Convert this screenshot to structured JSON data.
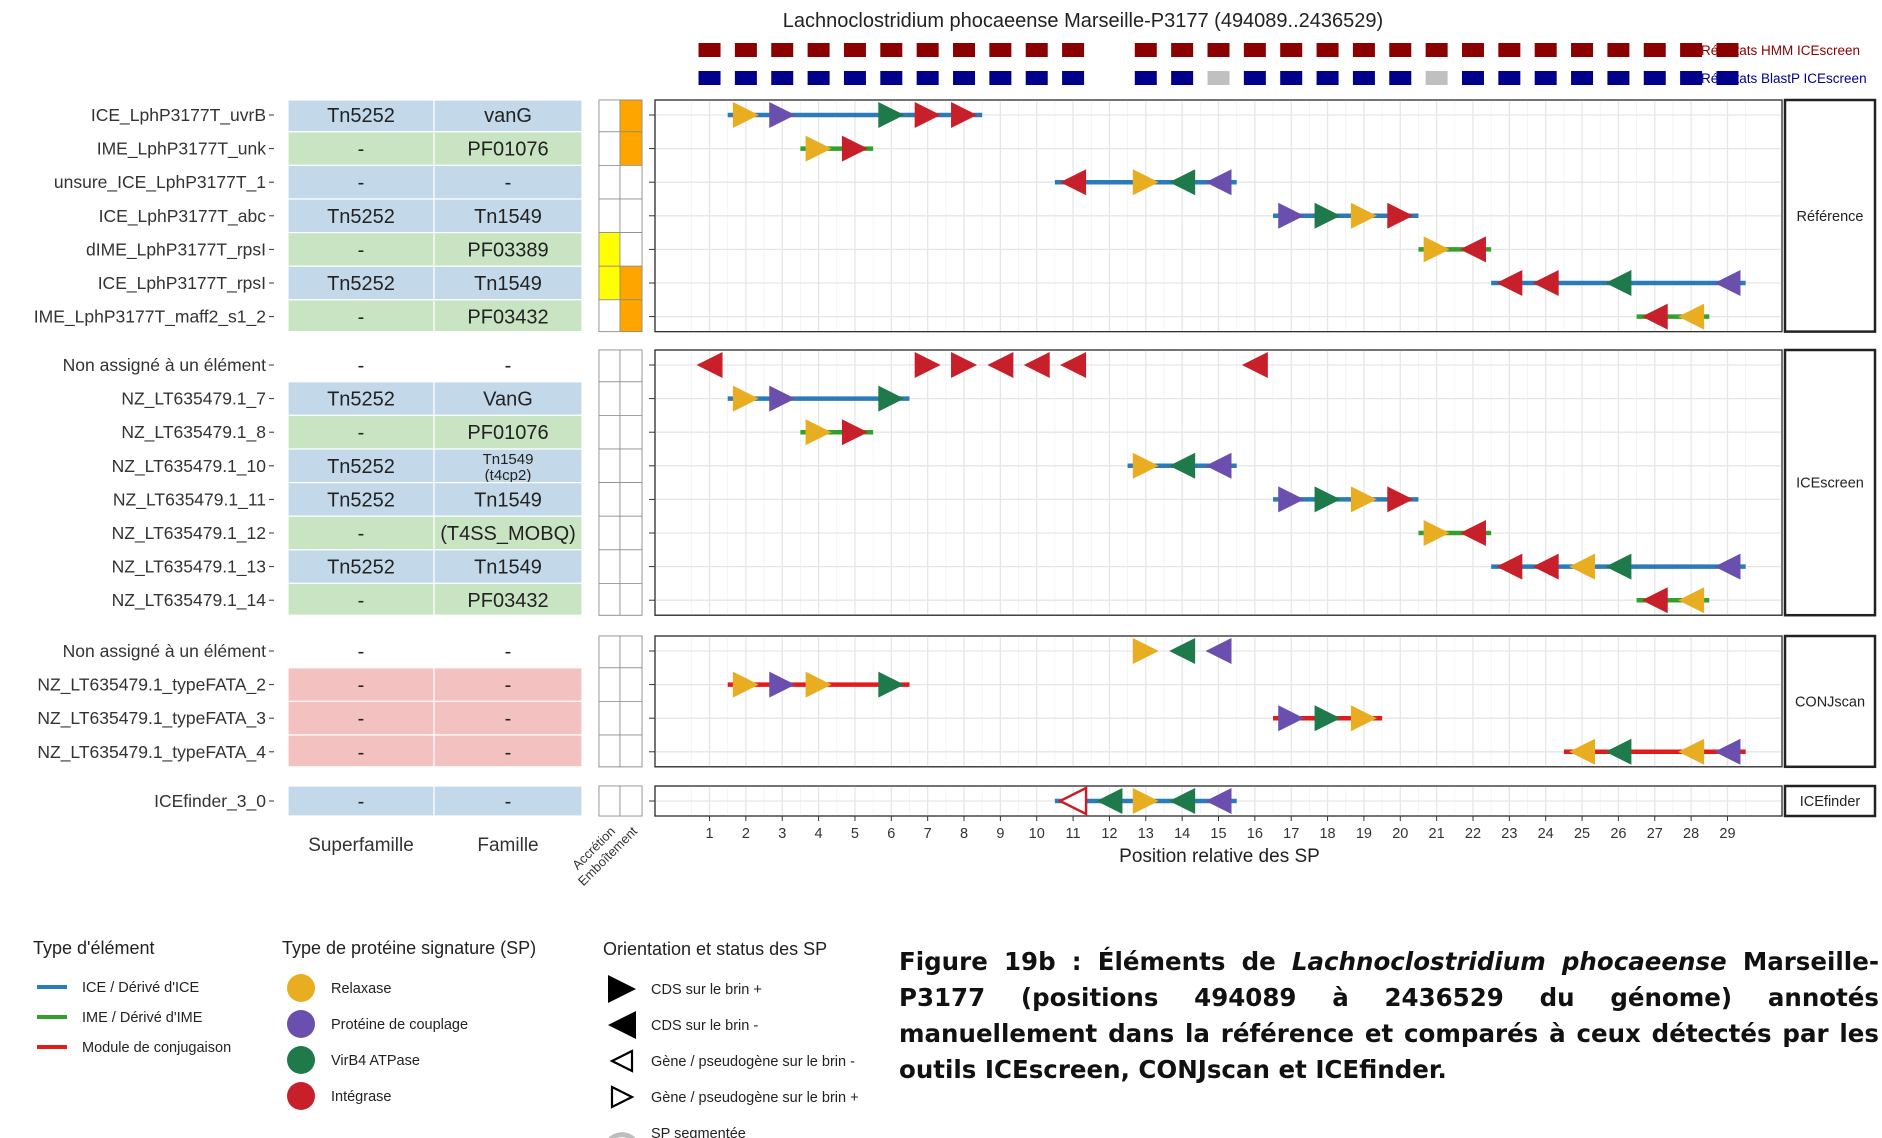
{
  "chart_data": {
    "type": "scatter",
    "title": "Lachnoclostridium phocaeense Marseille-P3177 (494089..2436529)",
    "xlabel": "Position relative des SP",
    "x_ticks": [
      1,
      2,
      3,
      4,
      5,
      6,
      7,
      8,
      9,
      10,
      11,
      12,
      13,
      14,
      15,
      16,
      17,
      18,
      19,
      20,
      21,
      22,
      23,
      24,
      25,
      26,
      27,
      28,
      29
    ],
    "xlim": [
      -0.5,
      30.5
    ],
    "top_tracks": [
      {
        "name": "Résultats HMM ICEscreen",
        "color": "#8b0000",
        "cells": [
          "d",
          "d",
          "d",
          "d",
          "d",
          "d",
          "d",
          "d",
          "d",
          "d",
          "d",
          "-",
          "d",
          "d",
          "d",
          "d",
          "d",
          "d",
          "d",
          "d",
          "d",
          "d",
          "d",
          "d",
          "d",
          "d",
          "d",
          "d",
          "d"
        ]
      },
      {
        "name": "Résultats BlastP ICEscreen",
        "color": "#00008b",
        "cells": [
          "b",
          "b",
          "b",
          "b",
          "b",
          "b",
          "b",
          "b",
          "b",
          "b",
          "b",
          "-",
          "b",
          "b",
          "g",
          "b",
          "b",
          "b",
          "b",
          "b",
          "g",
          "b",
          "b",
          "b",
          "b",
          "b",
          "b",
          "b",
          "b"
        ]
      }
    ],
    "column_headers": {
      "superfamily": "Superfamille",
      "family": "Famille",
      "accretion": "Accrétion",
      "emboitement": "Emboîtement"
    },
    "colors": {
      "ice": "#2b7bba",
      "ime": "#33a02c",
      "conj": "#e31a1c",
      "relaxase": "#e8ad20",
      "coupling": "#6a4fae",
      "virb4": "#1e7a4a",
      "integrase": "#c8202a",
      "fam_blue": "#c3d9ea",
      "fam_green": "#c9e4c3",
      "fam_red": "#f4c1c1",
      "accretion": "#ffff00",
      "emboitement": "#ffa500"
    },
    "panels": [
      {
        "strip": "Référence",
        "rows": [
          {
            "label": "ICE_LphP3177T_uvrB",
            "sf": "Tn5252",
            "fam": "vanG",
            "fill": "blue",
            "acc": false,
            "emb": true,
            "line": {
              "type": "ice",
              "from": 1.5,
              "to": 8.5
            },
            "sp": [
              {
                "x": 2,
                "t": "relaxase",
                "d": "+"
              },
              {
                "x": 3,
                "t": "coupling",
                "d": "+"
              },
              {
                "x": 6,
                "t": "virb4",
                "d": "+"
              },
              {
                "x": 7,
                "t": "integrase",
                "d": "+"
              },
              {
                "x": 8,
                "t": "integrase",
                "d": "+"
              }
            ]
          },
          {
            "label": "IME_LphP3177T_unk",
            "sf": "-",
            "fam": "PF01076",
            "fill": "green",
            "acc": false,
            "emb": true,
            "line": {
              "type": "ime",
              "from": 3.5,
              "to": 5.5
            },
            "sp": [
              {
                "x": 4,
                "t": "relaxase",
                "d": "+"
              },
              {
                "x": 5,
                "t": "integrase",
                "d": "+"
              }
            ]
          },
          {
            "label": "unsure_ICE_LphP3177T_1",
            "sf": "-",
            "fam": "-",
            "fill": "blue",
            "acc": false,
            "emb": false,
            "line": {
              "type": "ice",
              "from": 10.5,
              "to": 15.5
            },
            "sp": [
              {
                "x": 11,
                "t": "integrase",
                "d": "-"
              },
              {
                "x": 13,
                "t": "relaxase",
                "d": "+"
              },
              {
                "x": 14,
                "t": "virb4",
                "d": "-"
              },
              {
                "x": 15,
                "t": "coupling",
                "d": "-"
              }
            ]
          },
          {
            "label": "ICE_LphP3177T_abc",
            "sf": "Tn5252",
            "fam": "Tn1549",
            "fill": "blue",
            "acc": false,
            "emb": false,
            "line": {
              "type": "ice",
              "from": 16.5,
              "to": 20.5
            },
            "sp": [
              {
                "x": 17,
                "t": "coupling",
                "d": "+"
              },
              {
                "x": 18,
                "t": "virb4",
                "d": "+"
              },
              {
                "x": 19,
                "t": "relaxase",
                "d": "+"
              },
              {
                "x": 20,
                "t": "integrase",
                "d": "+"
              }
            ]
          },
          {
            "label": "dIME_LphP3177T_rpsI",
            "sf": "-",
            "fam": "PF03389",
            "fill": "green",
            "acc": true,
            "emb": false,
            "line": {
              "type": "ime",
              "from": 20.5,
              "to": 22.5
            },
            "sp": [
              {
                "x": 21,
                "t": "relaxase",
                "d": "+"
              },
              {
                "x": 22,
                "t": "integrase",
                "d": "-"
              }
            ]
          },
          {
            "label": "ICE_LphP3177T_rpsI",
            "sf": "Tn5252",
            "fam": "Tn1549",
            "fill": "blue",
            "acc": true,
            "emb": true,
            "line": {
              "type": "ice",
              "from": 22.5,
              "to": 29.5
            },
            "sp": [
              {
                "x": 23,
                "t": "integrase",
                "d": "-"
              },
              {
                "x": 24,
                "t": "integrase",
                "d": "-"
              },
              {
                "x": 26,
                "t": "virb4",
                "d": "-"
              },
              {
                "x": 29,
                "t": "coupling",
                "d": "-"
              }
            ]
          },
          {
            "label": "IME_LphP3177T_maff2_s1_2",
            "sf": "-",
            "fam": "PF03432",
            "fill": "green",
            "acc": false,
            "emb": true,
            "line": {
              "type": "ime",
              "from": 26.5,
              "to": 28.5
            },
            "sp": [
              {
                "x": 27,
                "t": "integrase",
                "d": "-"
              },
              {
                "x": 28,
                "t": "relaxase",
                "d": "-"
              }
            ]
          }
        ]
      },
      {
        "strip": "ICEscreen",
        "rows": [
          {
            "label": "Non assigné à un élément",
            "sf": "-",
            "fam": "-",
            "fill": "white",
            "acc": false,
            "emb": false,
            "line": null,
            "sp": [
              {
                "x": 1,
                "t": "integrase",
                "d": "-"
              },
              {
                "x": 7,
                "t": "integrase",
                "d": "+"
              },
              {
                "x": 8,
                "t": "integrase",
                "d": "+"
              },
              {
                "x": 9,
                "t": "integrase",
                "d": "-"
              },
              {
                "x": 10,
                "t": "integrase",
                "d": "-"
              },
              {
                "x": 11,
                "t": "integrase",
                "d": "-"
              },
              {
                "x": 16,
                "t": "integrase",
                "d": "-"
              }
            ]
          },
          {
            "label": "NZ_LT635479.1_7",
            "sf": "Tn5252",
            "fam": "VanG",
            "fill": "blue",
            "acc": false,
            "emb": false,
            "line": {
              "type": "ice",
              "from": 1.5,
              "to": 6.5
            },
            "sp": [
              {
                "x": 2,
                "t": "relaxase",
                "d": "+"
              },
              {
                "x": 3,
                "t": "coupling",
                "d": "+"
              },
              {
                "x": 6,
                "t": "virb4",
                "d": "+"
              }
            ]
          },
          {
            "label": "NZ_LT635479.1_8",
            "sf": "-",
            "fam": "PF01076",
            "fill": "green",
            "acc": false,
            "emb": false,
            "line": {
              "type": "ime",
              "from": 3.5,
              "to": 5.5
            },
            "sp": [
              {
                "x": 4,
                "t": "relaxase",
                "d": "+"
              },
              {
                "x": 5,
                "t": "integrase",
                "d": "+"
              }
            ]
          },
          {
            "label": "NZ_LT635479.1_10",
            "sf": "Tn5252",
            "fam": "Tn1549",
            "fam2": "(t4cp2)",
            "fill": "blue",
            "acc": false,
            "emb": false,
            "line": {
              "type": "ice",
              "from": 12.5,
              "to": 15.5
            },
            "sp": [
              {
                "x": 13,
                "t": "relaxase",
                "d": "+"
              },
              {
                "x": 14,
                "t": "virb4",
                "d": "-"
              },
              {
                "x": 15,
                "t": "coupling",
                "d": "-"
              }
            ]
          },
          {
            "label": "NZ_LT635479.1_11",
            "sf": "Tn5252",
            "fam": "Tn1549",
            "fill": "blue",
            "acc": false,
            "emb": false,
            "line": {
              "type": "ice",
              "from": 16.5,
              "to": 20.5
            },
            "sp": [
              {
                "x": 17,
                "t": "coupling",
                "d": "+"
              },
              {
                "x": 18,
                "t": "virb4",
                "d": "+"
              },
              {
                "x": 19,
                "t": "relaxase",
                "d": "+"
              },
              {
                "x": 20,
                "t": "integrase",
                "d": "+"
              }
            ]
          },
          {
            "label": "NZ_LT635479.1_12",
            "sf": "-",
            "fam": "(T4SS_MOBQ)",
            "fill": "green",
            "acc": false,
            "emb": false,
            "line": {
              "type": "ime",
              "from": 20.5,
              "to": 22.5
            },
            "sp": [
              {
                "x": 21,
                "t": "relaxase",
                "d": "+"
              },
              {
                "x": 22,
                "t": "integrase",
                "d": "-"
              }
            ]
          },
          {
            "label": "NZ_LT635479.1_13",
            "sf": "Tn5252",
            "fam": "Tn1549",
            "fill": "blue",
            "acc": false,
            "emb": false,
            "line": {
              "type": "ice",
              "from": 22.5,
              "to": 29.5
            },
            "sp": [
              {
                "x": 23,
                "t": "integrase",
                "d": "-"
              },
              {
                "x": 24,
                "t": "integrase",
                "d": "-"
              },
              {
                "x": 25,
                "t": "relaxase",
                "d": "-"
              },
              {
                "x": 26,
                "t": "virb4",
                "d": "-"
              },
              {
                "x": 29,
                "t": "coupling",
                "d": "-"
              }
            ]
          },
          {
            "label": "NZ_LT635479.1_14",
            "sf": "-",
            "fam": "PF03432",
            "fill": "green",
            "acc": false,
            "emb": false,
            "line": {
              "type": "ime",
              "from": 26.5,
              "to": 28.5
            },
            "sp": [
              {
                "x": 27,
                "t": "integrase",
                "d": "-"
              },
              {
                "x": 28,
                "t": "relaxase",
                "d": "-"
              }
            ]
          }
        ]
      },
      {
        "strip": "CONJscan",
        "rows": [
          {
            "label": "Non assigné à un élément",
            "sf": "-",
            "fam": "-",
            "fill": "white",
            "acc": false,
            "emb": false,
            "line": null,
            "sp": [
              {
                "x": 13,
                "t": "relaxase",
                "d": "+"
              },
              {
                "x": 14,
                "t": "virb4",
                "d": "-"
              },
              {
                "x": 15,
                "t": "coupling",
                "d": "-"
              }
            ]
          },
          {
            "label": "NZ_LT635479.1_typeFATA_2",
            "sf": "-",
            "fam": "-",
            "fill": "red",
            "acc": false,
            "emb": false,
            "line": {
              "type": "conj",
              "from": 1.5,
              "to": 6.5
            },
            "sp": [
              {
                "x": 2,
                "t": "relaxase",
                "d": "+"
              },
              {
                "x": 3,
                "t": "coupling",
                "d": "+"
              },
              {
                "x": 4,
                "t": "relaxase",
                "d": "+"
              },
              {
                "x": 6,
                "t": "virb4",
                "d": "+"
              }
            ]
          },
          {
            "label": "NZ_LT635479.1_typeFATA_3",
            "sf": "-",
            "fam": "-",
            "fill": "red",
            "acc": false,
            "emb": false,
            "line": {
              "type": "conj",
              "from": 16.5,
              "to": 19.5
            },
            "sp": [
              {
                "x": 17,
                "t": "coupling",
                "d": "+"
              },
              {
                "x": 18,
                "t": "virb4",
                "d": "+"
              },
              {
                "x": 19,
                "t": "relaxase",
                "d": "+"
              }
            ]
          },
          {
            "label": "NZ_LT635479.1_typeFATA_4",
            "sf": "-",
            "fam": "-",
            "fill": "red",
            "acc": false,
            "emb": false,
            "line": {
              "type": "conj",
              "from": 24.5,
              "to": 29.5
            },
            "sp": [
              {
                "x": 25,
                "t": "relaxase",
                "d": "-"
              },
              {
                "x": 26,
                "t": "virb4",
                "d": "-"
              },
              {
                "x": 28,
                "t": "relaxase",
                "d": "-"
              },
              {
                "x": 29,
                "t": "coupling",
                "d": "-"
              }
            ]
          }
        ]
      },
      {
        "strip": "ICEfinder",
        "rows": [
          {
            "label": "ICEfinder_3_0",
            "sf": "-",
            "fam": "-",
            "fill": "blue",
            "acc": false,
            "emb": false,
            "line": {
              "type": "ice",
              "from": 10.5,
              "to": 15.5
            },
            "sp": [
              {
                "x": 11,
                "t": "integrase",
                "d": "-",
                "hollow": true
              },
              {
                "x": 12,
                "t": "virb4",
                "d": "-"
              },
              {
                "x": 13,
                "t": "relaxase",
                "d": "+"
              },
              {
                "x": 14,
                "t": "virb4",
                "d": "-"
              },
              {
                "x": 15,
                "t": "coupling",
                "d": "-"
              }
            ]
          }
        ]
      }
    ],
    "legend": {
      "element_type": {
        "title": "Type d'élément",
        "items": [
          {
            "label": "ICE / Dérivé d'ICE",
            "key": "ice"
          },
          {
            "label": "IME / Dérivé d'IME",
            "key": "ime"
          },
          {
            "label": "Module de conjugaison",
            "key": "conj"
          }
        ]
      },
      "sp_type": {
        "title": "Type de protéine signature (SP)",
        "items": [
          {
            "label": "Relaxase",
            "key": "relaxase"
          },
          {
            "label": "Protéine de couplage",
            "key": "coupling"
          },
          {
            "label": "VirB4 ATPase",
            "key": "virb4"
          },
          {
            "label": "Intégrase",
            "key": "integrase"
          }
        ]
      },
      "orientation": {
        "title": "Orientation et status des SP",
        "items": [
          {
            "label": "CDS sur le brin +",
            "shape": "solid-right"
          },
          {
            "label": "CDS sur le brin -",
            "shape": "solid-left"
          },
          {
            "label": "Gène / pseudogène sur le brin -",
            "shape": "hollow-left"
          },
          {
            "label": "Gène / pseudogène sur le brin +",
            "shape": "hollow-right"
          },
          {
            "label": "SP segmentée",
            "shape": "arc"
          }
        ]
      }
    }
  },
  "caption": {
    "prefix": "Figure 19b : Éléments de ",
    "species": "Lachnoclostridium phocaeense",
    "suffix": " Marseille-P3177 (positions 494089 à 2436529 du génome) annotés manuellement dans la référence et comparés à ceux détectés par les outils ICEscreen, CONJscan et ICEfinder."
  }
}
